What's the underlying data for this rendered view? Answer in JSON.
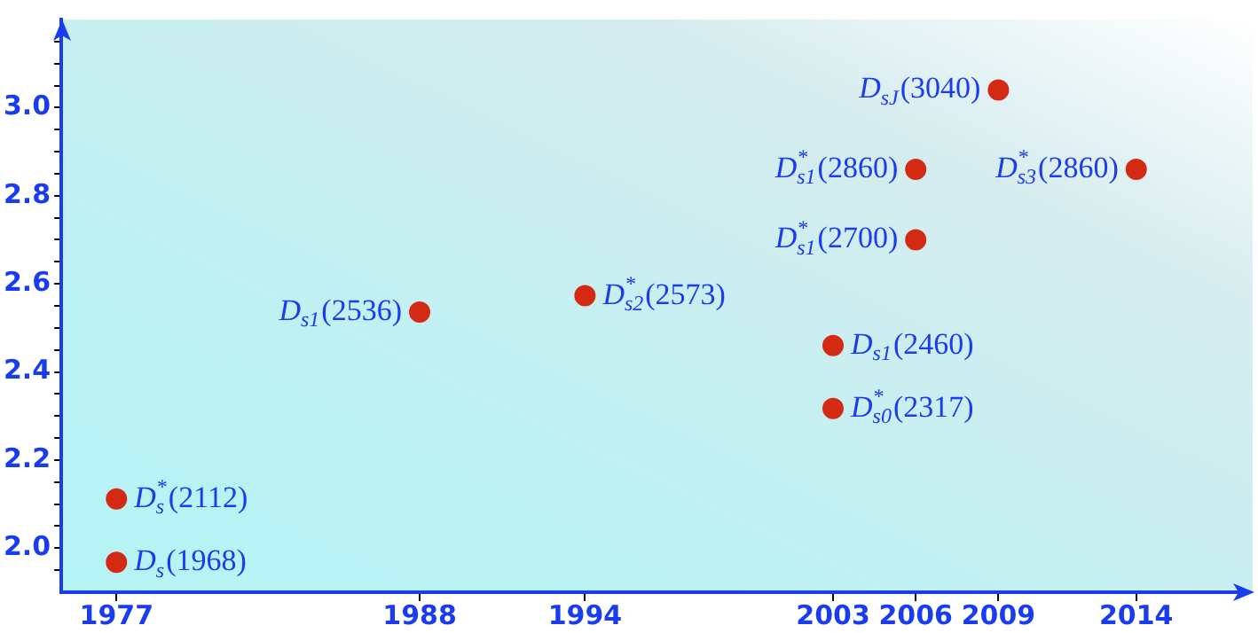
{
  "chart_data": {
    "type": "scatter",
    "marker": "circle",
    "grid": false,
    "legend": false,
    "x": [
      1977,
      1977,
      1988,
      1994,
      2003,
      2003,
      2006,
      2006,
      2009,
      2014
    ],
    "series": [
      {
        "color": "#d42a14",
        "values": [
          1.968,
          2.112,
          2.536,
          2.573,
          2.317,
          2.46,
          2.7,
          2.86,
          3.04,
          2.86
        ]
      }
    ],
    "xlim": [
      1975,
      2018
    ],
    "xticks": [
      1977,
      1988,
      1994,
      2003,
      2006,
      2009,
      2014
    ],
    "ylim": [
      1.9,
      3.2
    ],
    "yticks": [
      {
        "value": 1.95,
        "label": null
      },
      {
        "value": 2.0,
        "label": "2.0"
      },
      {
        "value": 2.05,
        "label": null
      },
      {
        "value": 2.1,
        "label": null
      },
      {
        "value": 2.15,
        "label": null
      },
      2.2,
      {
        "value": 2.25,
        "label": null
      },
      {
        "value": 2.3,
        "label": null
      },
      {
        "value": 2.35,
        "label": null
      },
      2.4,
      {
        "value": 2.45,
        "label": null
      },
      {
        "value": 2.5,
        "label": null
      },
      {
        "value": 2.55,
        "label": null
      },
      2.6,
      {
        "value": 2.65,
        "label": null
      },
      {
        "value": 2.7,
        "label": null
      },
      {
        "value": 2.75,
        "label": null
      },
      2.8,
      {
        "value": 2.85,
        "label": null
      },
      {
        "value": 2.9,
        "label": null
      },
      {
        "value": 2.95,
        "label": null
      },
      {
        "value": 3.0,
        "label": "3.0"
      },
      {
        "value": 3.05,
        "label": null
      },
      {
        "value": 3.1,
        "label": null
      },
      {
        "value": 3.15,
        "label": null
      }
    ],
    "annotations": [
      {
        "text": "D$_{s}$(1968)",
        "x": 1977,
        "y": 1.968
      },
      {
        "text": "D$^{*}$$_{s}$(2112)",
        "x": 1977,
        "y": 2.112
      },
      {
        "text": "D$_{s1}$(2536)",
        "x": 1988,
        "y": 2.536
      },
      {
        "text": "D$^{*}$$_{s2}$(2573)",
        "x": 1994,
        "y": 2.573
      },
      {
        "text": "D$^{*}$$_{s0}$(2317)",
        "x": 2003,
        "y": 2.317
      },
      {
        "text": "D$_{s1}$(2460)",
        "x": 2003,
        "y": 2.46
      },
      {
        "text": "D$^{*}$$_{s1}$(2700)",
        "x": 2006,
        "y": 2.7
      },
      {
        "text": "D$^{*}$$_{s1}$(2860)",
        "x": 2006,
        "y": 2.86
      },
      {
        "text": "D$_{sJ}$(3040)",
        "x": 2009,
        "y": 3.04
      },
      {
        "text": "D$^{*}$$_{s3}$(2860)",
        "x": 2014,
        "y": 2.86
      }
    ]
  }
}
